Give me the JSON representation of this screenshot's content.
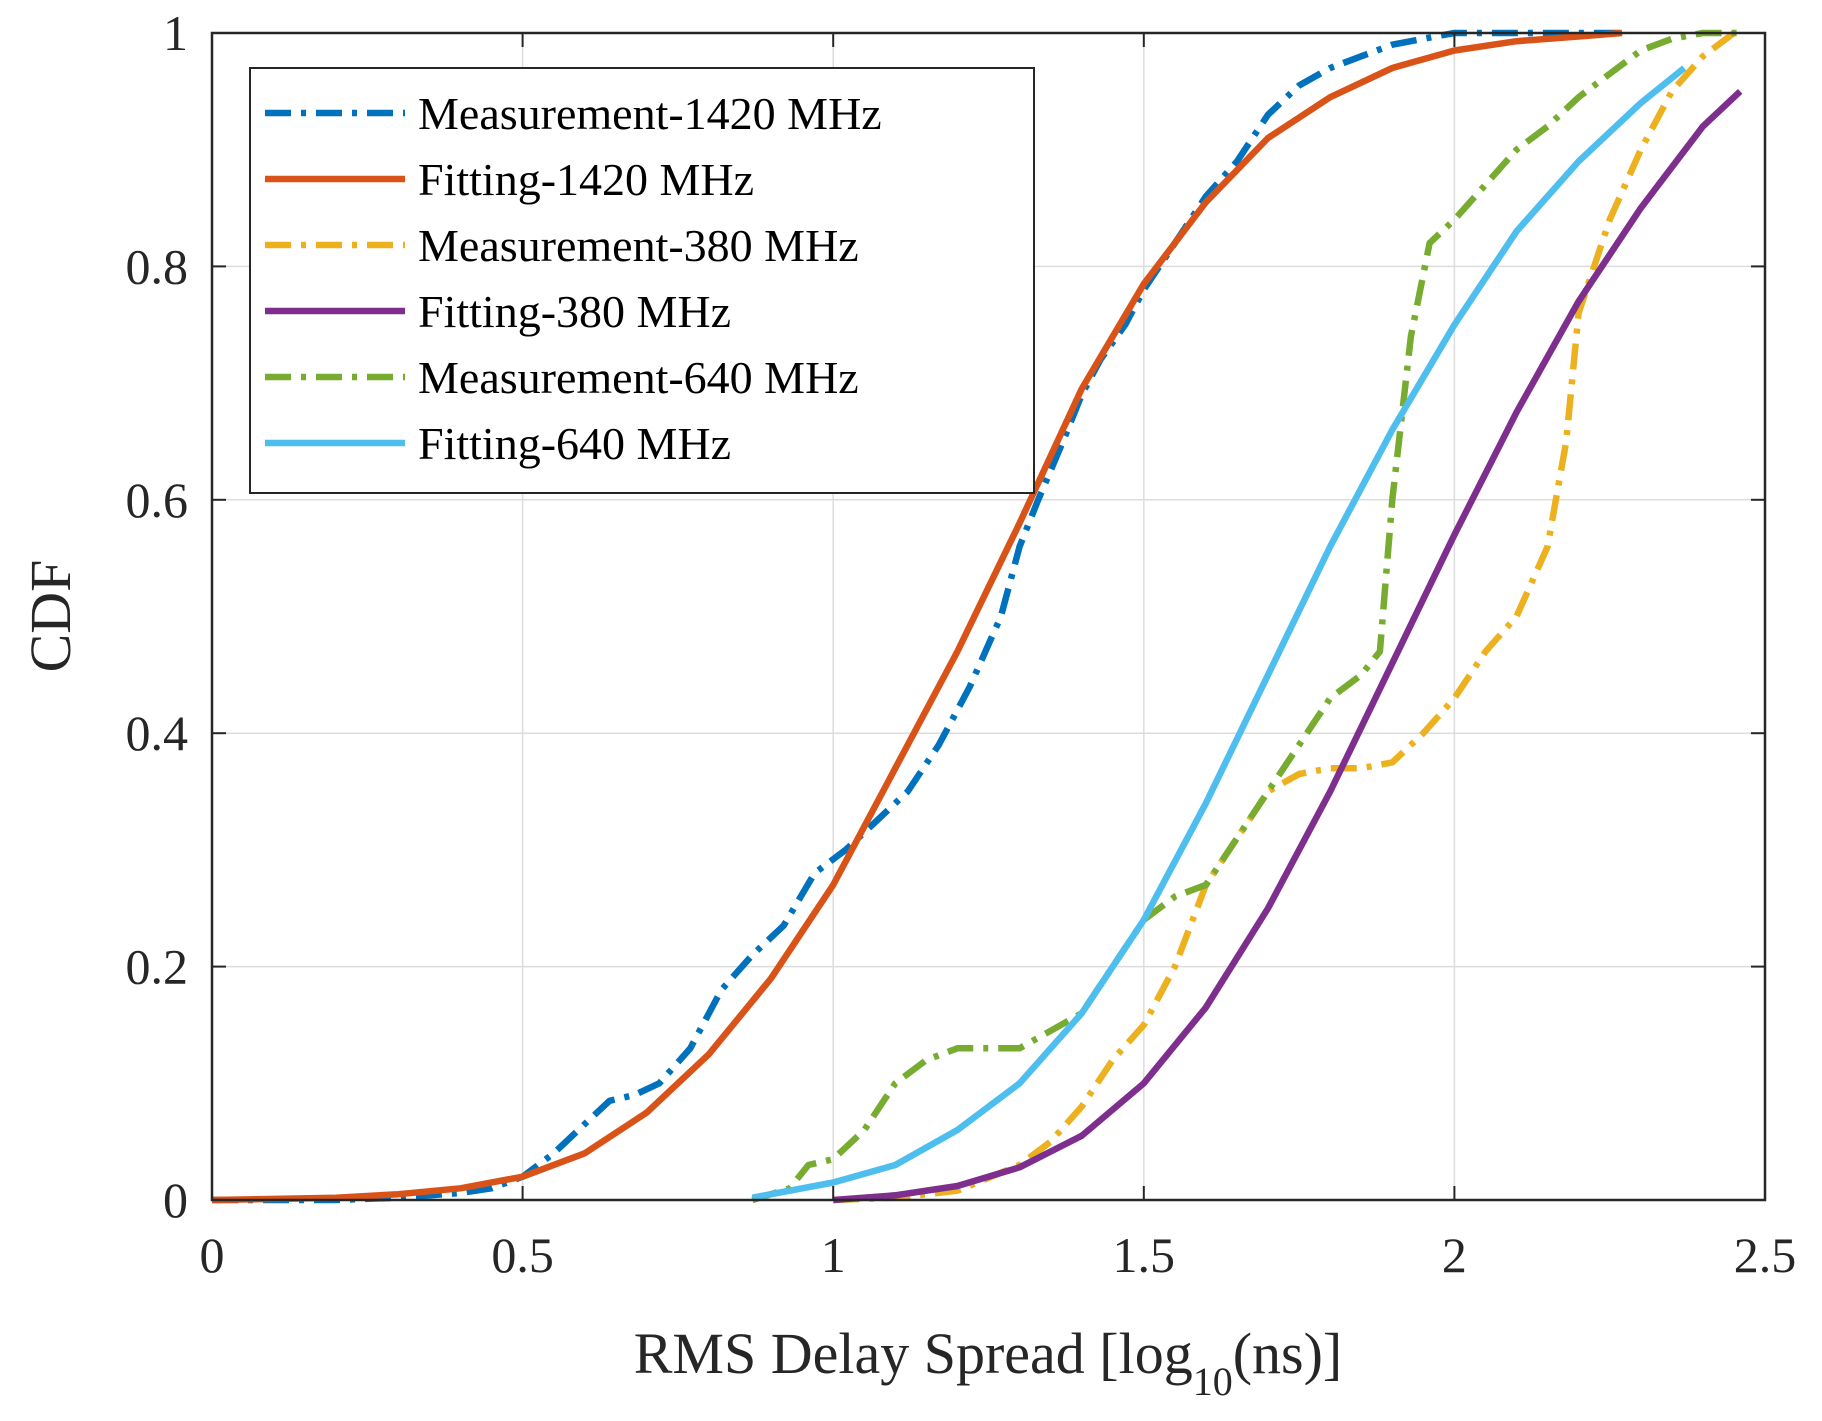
{
  "chart_data": {
    "type": "line",
    "title": "",
    "xlabel": {
      "prefix": "RMS Delay Spread [log",
      "subscript": "10",
      "suffix": "(ns)]"
    },
    "ylabel": "CDF",
    "xlim": [
      0,
      2.5
    ],
    "ylim": [
      0,
      1
    ],
    "grid": true,
    "legend_position": "top-left",
    "xticks": [
      0,
      0.5,
      1,
      1.5,
      2,
      2.5
    ],
    "xtick_labels": [
      "0",
      "0.5",
      "1",
      "1.5",
      "2",
      "2.5"
    ],
    "yticks": [
      0,
      0.2,
      0.4,
      0.6,
      0.8,
      1
    ],
    "ytick_labels": [
      "0",
      "0.2",
      "0.4",
      "0.6",
      "0.8",
      "1"
    ],
    "series": [
      {
        "name": "Measurement-1420 MHz",
        "color": "#0072BD",
        "style": "dashdot",
        "x": [
          0,
          0.2,
          0.3,
          0.4,
          0.45,
          0.5,
          0.55,
          0.6,
          0.64,
          0.68,
          0.72,
          0.77,
          0.82,
          0.87,
          0.92,
          0.97,
          1.02,
          1.07,
          1.12,
          1.17,
          1.22,
          1.27,
          1.3,
          1.33,
          1.37,
          1.4,
          1.43,
          1.47,
          1.5,
          1.55,
          1.6,
          1.65,
          1.7,
          1.75,
          1.8,
          1.85,
          1.9,
          1.95,
          2.0,
          2.1,
          2.2,
          2.27
        ],
        "y": [
          0,
          0,
          0.002,
          0.006,
          0.01,
          0.02,
          0.04,
          0.065,
          0.085,
          0.09,
          0.1,
          0.13,
          0.18,
          0.21,
          0.235,
          0.28,
          0.3,
          0.325,
          0.35,
          0.39,
          0.44,
          0.5,
          0.56,
          0.6,
          0.65,
          0.69,
          0.72,
          0.75,
          0.78,
          0.82,
          0.86,
          0.89,
          0.93,
          0.955,
          0.97,
          0.98,
          0.99,
          0.995,
          1.0,
          1.0,
          1.0,
          1.0
        ]
      },
      {
        "name": "Fitting-1420 MHz",
        "color": "#D95319",
        "style": "solid",
        "x": [
          0,
          0.2,
          0.3,
          0.4,
          0.5,
          0.6,
          0.7,
          0.8,
          0.9,
          1.0,
          1.1,
          1.2,
          1.3,
          1.4,
          1.5,
          1.6,
          1.7,
          1.8,
          1.9,
          2.0,
          2.1,
          2.2,
          2.27
        ],
        "y": [
          0,
          0.002,
          0.005,
          0.01,
          0.02,
          0.04,
          0.075,
          0.125,
          0.19,
          0.27,
          0.37,
          0.47,
          0.58,
          0.695,
          0.785,
          0.855,
          0.91,
          0.945,
          0.97,
          0.985,
          0.993,
          0.997,
          1.0
        ]
      },
      {
        "name": "Measurement-380 MHz",
        "color": "#EDB120",
        "style": "dashdot",
        "x": [
          1.0,
          1.1,
          1.2,
          1.3,
          1.35,
          1.4,
          1.45,
          1.5,
          1.55,
          1.6,
          1.65,
          1.7,
          1.75,
          1.8,
          1.85,
          1.9,
          1.95,
          2.0,
          2.05,
          2.1,
          2.15,
          2.18,
          2.2,
          2.25,
          2.3,
          2.35,
          2.4,
          2.45
        ],
        "y": [
          0,
          0.002,
          0.008,
          0.03,
          0.05,
          0.08,
          0.12,
          0.15,
          0.2,
          0.27,
          0.31,
          0.35,
          0.365,
          0.37,
          0.37,
          0.375,
          0.4,
          0.43,
          0.47,
          0.5,
          0.56,
          0.65,
          0.76,
          0.84,
          0.9,
          0.95,
          0.98,
          1.0
        ]
      },
      {
        "name": "Fitting-380 MHz",
        "color": "#7E2F8E",
        "style": "solid",
        "x": [
          1.0,
          1.1,
          1.2,
          1.3,
          1.4,
          1.5,
          1.6,
          1.7,
          1.8,
          1.9,
          2.0,
          2.1,
          2.2,
          2.3,
          2.4,
          2.46
        ],
        "y": [
          0,
          0.004,
          0.012,
          0.028,
          0.055,
          0.1,
          0.165,
          0.25,
          0.35,
          0.46,
          0.57,
          0.675,
          0.77,
          0.85,
          0.92,
          0.95
        ]
      },
      {
        "name": "Measurement-640 MHz",
        "color": "#77AC30",
        "style": "dashdot",
        "x": [
          0.87,
          0.93,
          0.96,
          1.0,
          1.05,
          1.1,
          1.15,
          1.2,
          1.25,
          1.3,
          1.35,
          1.4,
          1.45,
          1.5,
          1.55,
          1.6,
          1.65,
          1.7,
          1.75,
          1.8,
          1.85,
          1.88,
          1.9,
          1.93,
          1.96,
          2.0,
          2.05,
          2.1,
          2.15,
          2.2,
          2.25,
          2.3,
          2.35,
          2.4,
          2.46
        ],
        "y": [
          0,
          0.01,
          0.03,
          0.035,
          0.06,
          0.1,
          0.12,
          0.13,
          0.13,
          0.13,
          0.145,
          0.16,
          0.2,
          0.24,
          0.26,
          0.27,
          0.31,
          0.35,
          0.39,
          0.43,
          0.45,
          0.47,
          0.6,
          0.74,
          0.82,
          0.84,
          0.87,
          0.9,
          0.92,
          0.945,
          0.965,
          0.985,
          0.995,
          1.0,
          1.0
        ]
      },
      {
        "name": "Fitting-640 MHz",
        "color": "#4DBEEE",
        "style": "solid",
        "x": [
          0.87,
          0.9,
          1.0,
          1.1,
          1.2,
          1.3,
          1.4,
          1.5,
          1.6,
          1.7,
          1.8,
          1.9,
          2.0,
          2.1,
          2.2,
          2.3,
          2.37
        ],
        "y": [
          0.002,
          0.005,
          0.015,
          0.03,
          0.06,
          0.1,
          0.16,
          0.24,
          0.34,
          0.45,
          0.56,
          0.66,
          0.75,
          0.83,
          0.89,
          0.94,
          0.97
        ]
      }
    ]
  }
}
